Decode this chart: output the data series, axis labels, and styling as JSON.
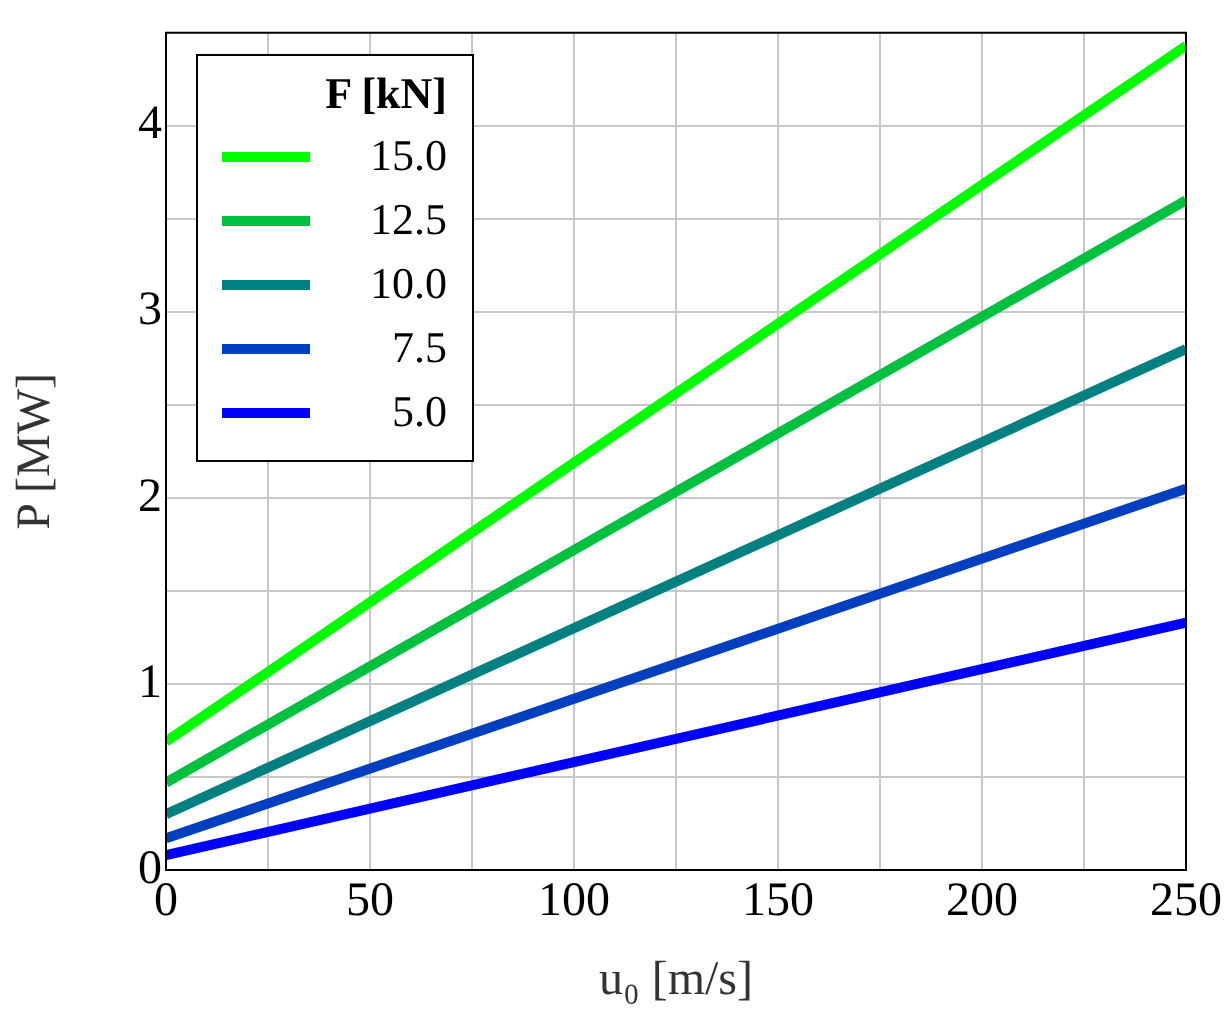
{
  "chart_data": {
    "type": "line",
    "xlabel": "u₀ [m/s]",
    "ylabel": "P [MW]",
    "legend_title": "F [kN]",
    "legend": "top left",
    "grid": true,
    "marker": "none",
    "line_style": "solid",
    "xlim": [
      0,
      250
    ],
    "ylim": [
      0,
      4.5
    ],
    "xticks": [
      0,
      {
        "value": 25,
        "label": null
      },
      50,
      {
        "value": 75,
        "label": null
      },
      100,
      {
        "value": 125,
        "label": null
      },
      150,
      {
        "value": 175,
        "label": null
      },
      200,
      {
        "value": 225,
        "label": null
      },
      250
    ],
    "yticks": [
      0,
      {
        "value": 0.5,
        "label": null
      },
      1,
      {
        "value": 1.5,
        "label": null
      },
      2,
      {
        "value": 2.5,
        "label": null
      },
      3,
      {
        "value": 3.5,
        "label": null
      },
      4
    ],
    "x": [
      0,
      100,
      250
    ],
    "series": [
      {
        "name": "15.0",
        "color": "#00ff00",
        "values": [
          0.69,
          2.19,
          4.43
        ]
      },
      {
        "name": "12.5",
        "color": "#00c040",
        "values": [
          0.47,
          1.72,
          3.6
        ]
      },
      {
        "name": "10.0",
        "color": "#008080",
        "values": [
          0.3,
          1.3,
          2.8
        ]
      },
      {
        "name": "7.5",
        "color": "#0040c0",
        "values": [
          0.17,
          0.92,
          2.05
        ]
      },
      {
        "name": "5.0",
        "color": "#0000ff",
        "values": [
          0.08,
          0.58,
          1.33
        ]
      }
    ]
  }
}
